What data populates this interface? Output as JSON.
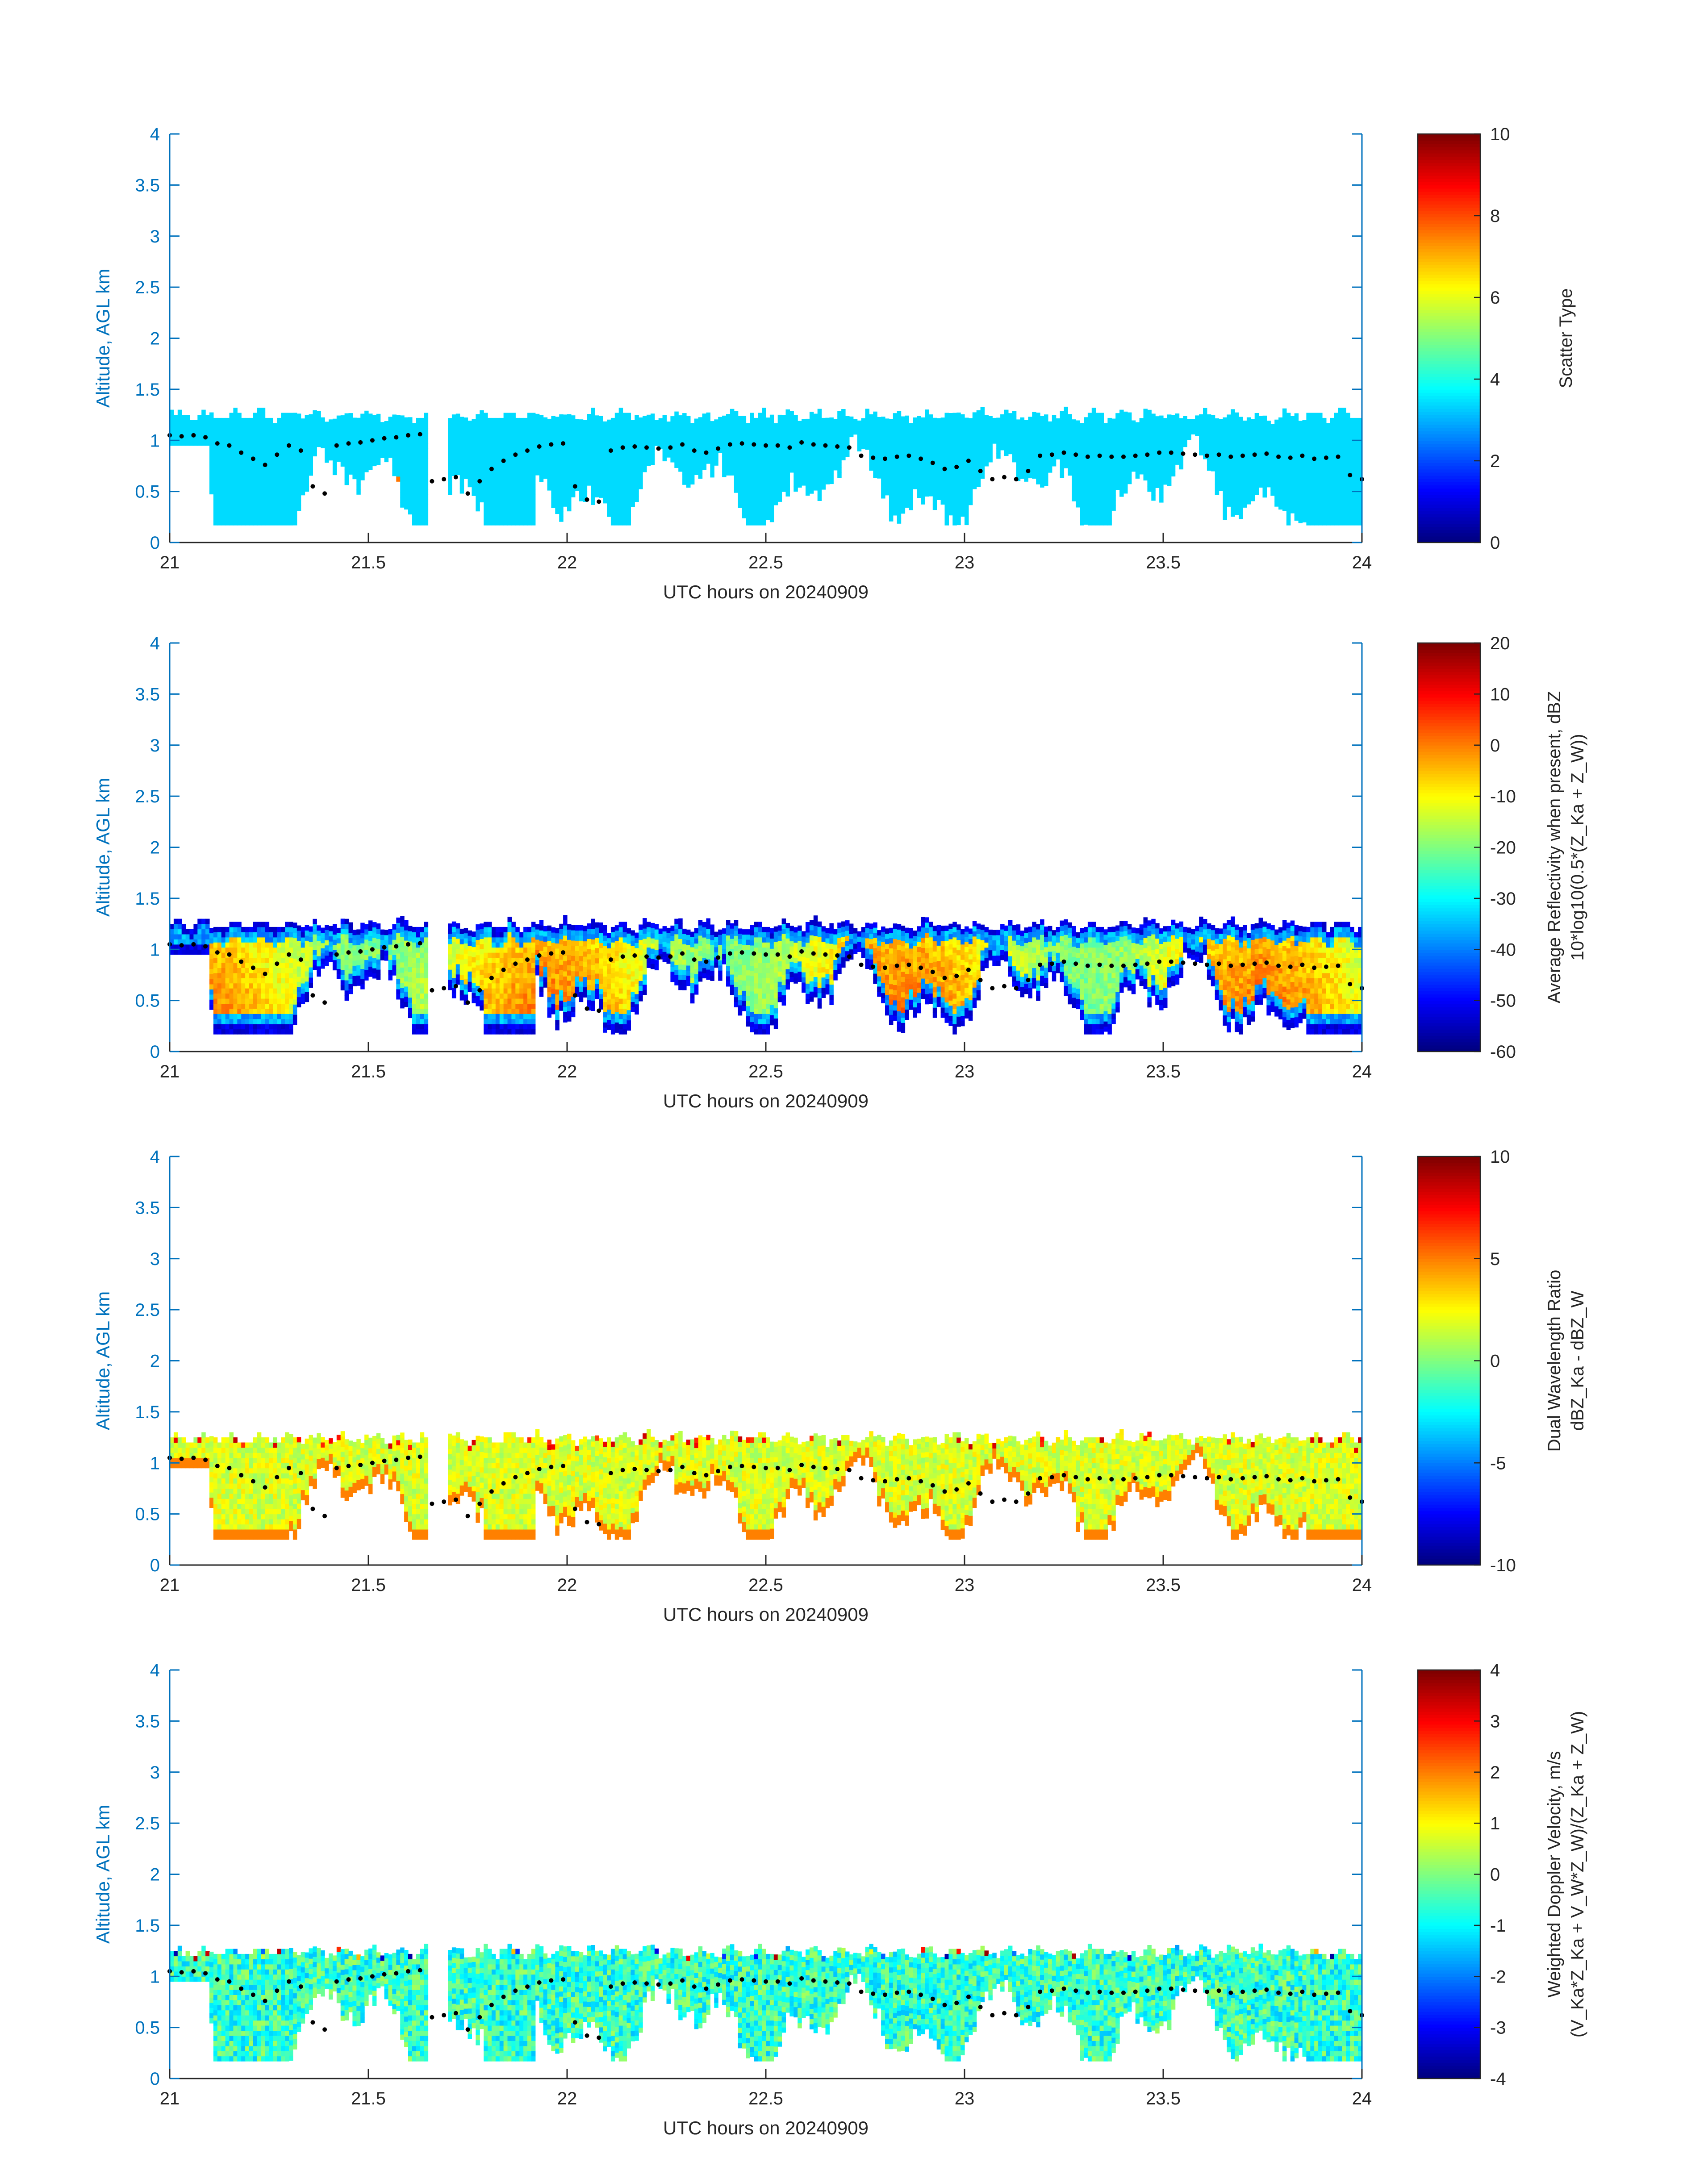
{
  "chart_data": [
    {
      "type": "heatmap",
      "title": "",
      "xlabel": "UTC hours on 20240909",
      "ylabel": "Altitude, AGL km",
      "xlim": [
        21,
        24
      ],
      "ylim": [
        0,
        4
      ],
      "xticks": [
        "21",
        "21.5",
        "22",
        "22.5",
        "23",
        "23.5",
        "24"
      ],
      "yticks": [
        "0",
        "0.5",
        "1",
        "1.5",
        "2",
        "2.5",
        "3",
        "3.5",
        "4"
      ],
      "colorbar": {
        "label_lines": [
          "Scatter Type"
        ],
        "range": [
          0,
          10
        ],
        "ticks": [
          "0",
          "2",
          "4",
          "6",
          "8",
          "10"
        ],
        "colormap": "jet"
      },
      "field": "scatter",
      "typical_value": 3.4,
      "echo_base_km": 0.17,
      "echo_top_km": 1.3
    },
    {
      "type": "heatmap",
      "title": "",
      "xlabel": "UTC hours on 20240909",
      "ylabel": "Altitude, AGL km",
      "xlim": [
        21,
        24
      ],
      "ylim": [
        0,
        4
      ],
      "xticks": [
        "21",
        "21.5",
        "22",
        "22.5",
        "23",
        "23.5",
        "24"
      ],
      "yticks": [
        "0",
        "0.5",
        "1",
        "1.5",
        "2",
        "2.5",
        "3",
        "3.5",
        "4"
      ],
      "colorbar": {
        "label_lines": [
          "Average Reflectivity when present, dBZ",
          "10*log10(0.5*(Z_Ka + Z_W))"
        ],
        "range": [
          -60,
          20
        ],
        "ticks": [
          "-60",
          "-50",
          "-40",
          "-30",
          "-20",
          "-10",
          "0",
          "10",
          "20"
        ],
        "colormap": "jet"
      },
      "field": "reflectivity",
      "core_value_range": [
        -20,
        2
      ],
      "edge_value": -55,
      "echo_base_km": 0.17,
      "echo_top_km": 1.3
    },
    {
      "type": "heatmap",
      "title": "",
      "xlabel": "UTC hours on 20240909",
      "ylabel": "Altitude, AGL km",
      "xlim": [
        21,
        24
      ],
      "ylim": [
        0,
        4
      ],
      "xticks": [
        "21",
        "21.5",
        "22",
        "22.5",
        "23",
        "23.5",
        "24"
      ],
      "yticks": [
        "0",
        "0.5",
        "1",
        "1.5",
        "2",
        "2.5",
        "3",
        "3.5",
        "4"
      ],
      "colorbar": {
        "label_lines": [
          "Dual Wavelength Ratio",
          "dBZ_Ka - dBZ_W"
        ],
        "range": [
          -10,
          10
        ],
        "ticks": [
          "-10",
          "-5",
          "0",
          "5",
          "10"
        ],
        "colormap": "jet"
      },
      "field": "dwr",
      "value_range": [
        0.5,
        3
      ],
      "echo_base_km": 0.25,
      "echo_top_km": 1.3
    },
    {
      "type": "heatmap",
      "title": "",
      "xlabel": "UTC hours on 20240909",
      "ylabel": "Altitude, AGL km",
      "xlim": [
        21,
        24
      ],
      "ylim": [
        0,
        4
      ],
      "xticks": [
        "21",
        "21.5",
        "22",
        "22.5",
        "23",
        "23.5",
        "24"
      ],
      "yticks": [
        "0",
        "0.5",
        "1",
        "1.5",
        "2",
        "2.5",
        "3",
        "3.5",
        "4"
      ],
      "colorbar": {
        "label_lines": [
          "Weighted Doppler Velocity, m/s",
          "(V_Ka*Z_Ka + V_W*Z_W)/(Z_Ka + Z_W)"
        ],
        "range": [
          -4,
          4
        ],
        "ticks": [
          "-4",
          "-3",
          "-2",
          "-1",
          "0",
          "1",
          "2",
          "3",
          "4"
        ],
        "colormap": "jet"
      },
      "field": "velocity",
      "value_range": [
        -1.5,
        0.3
      ],
      "echo_base_km": 0.17,
      "echo_top_km": 1.3
    }
  ],
  "cloud_base_markers": {
    "description_units": "x: UTC hours, y: km",
    "points": [
      [
        21.0,
        1.05
      ],
      [
        21.03,
        1.04
      ],
      [
        21.06,
        1.05
      ],
      [
        21.09,
        1.03
      ],
      [
        21.12,
        0.97
      ],
      [
        21.15,
        0.95
      ],
      [
        21.18,
        0.88
      ],
      [
        21.21,
        0.82
      ],
      [
        21.24,
        0.76
      ],
      [
        21.27,
        0.86
      ],
      [
        21.3,
        0.95
      ],
      [
        21.33,
        0.9
      ],
      [
        21.36,
        0.55
      ],
      [
        21.39,
        0.48
      ],
      [
        21.42,
        0.95
      ],
      [
        21.45,
        0.97
      ],
      [
        21.48,
        0.98
      ],
      [
        21.51,
        1.0
      ],
      [
        21.54,
        1.02
      ],
      [
        21.57,
        1.03
      ],
      [
        21.6,
        1.05
      ],
      [
        21.63,
        1.06
      ],
      [
        21.66,
        0.6
      ],
      [
        21.69,
        0.62
      ],
      [
        21.72,
        0.64
      ],
      [
        21.75,
        0.48
      ],
      [
        21.78,
        0.6
      ],
      [
        21.81,
        0.72
      ],
      [
        21.84,
        0.8
      ],
      [
        21.87,
        0.86
      ],
      [
        21.9,
        0.9
      ],
      [
        21.93,
        0.94
      ],
      [
        21.96,
        0.96
      ],
      [
        21.99,
        0.97
      ],
      [
        22.02,
        0.55
      ],
      [
        22.05,
        0.42
      ],
      [
        22.08,
        0.4
      ],
      [
        22.11,
        0.9
      ],
      [
        22.14,
        0.93
      ],
      [
        22.17,
        0.94
      ],
      [
        22.2,
        0.93
      ],
      [
        22.23,
        0.92
      ],
      [
        22.26,
        0.93
      ],
      [
        22.29,
        0.96
      ],
      [
        22.32,
        0.9
      ],
      [
        22.35,
        0.88
      ],
      [
        22.38,
        0.92
      ],
      [
        22.41,
        0.96
      ],
      [
        22.44,
        0.97
      ],
      [
        22.47,
        0.96
      ],
      [
        22.5,
        0.95
      ],
      [
        22.53,
        0.95
      ],
      [
        22.56,
        0.93
      ],
      [
        22.59,
        0.98
      ],
      [
        22.62,
        0.96
      ],
      [
        22.65,
        0.95
      ],
      [
        22.68,
        0.94
      ],
      [
        22.71,
        0.93
      ],
      [
        22.74,
        0.85
      ],
      [
        22.77,
        0.83
      ],
      [
        22.8,
        0.82
      ],
      [
        22.83,
        0.84
      ],
      [
        22.86,
        0.85
      ],
      [
        22.89,
        0.82
      ],
      [
        22.92,
        0.78
      ],
      [
        22.95,
        0.72
      ],
      [
        22.98,
        0.74
      ],
      [
        23.01,
        0.8
      ],
      [
        23.04,
        0.7
      ],
      [
        23.07,
        0.62
      ],
      [
        23.1,
        0.64
      ],
      [
        23.13,
        0.62
      ],
      [
        23.16,
        0.7
      ],
      [
        23.19,
        0.85
      ],
      [
        23.22,
        0.86
      ],
      [
        23.25,
        0.88
      ],
      [
        23.28,
        0.86
      ],
      [
        23.31,
        0.84
      ],
      [
        23.34,
        0.85
      ],
      [
        23.37,
        0.84
      ],
      [
        23.4,
        0.84
      ],
      [
        23.43,
        0.85
      ],
      [
        23.46,
        0.86
      ],
      [
        23.49,
        0.88
      ],
      [
        23.52,
        0.88
      ],
      [
        23.55,
        0.87
      ],
      [
        23.58,
        0.86
      ],
      [
        23.61,
        0.85
      ],
      [
        23.64,
        0.86
      ],
      [
        23.67,
        0.84
      ],
      [
        23.7,
        0.85
      ],
      [
        23.73,
        0.86
      ],
      [
        23.76,
        0.87
      ],
      [
        23.79,
        0.84
      ],
      [
        23.82,
        0.83
      ],
      [
        23.85,
        0.85
      ],
      [
        23.88,
        0.82
      ],
      [
        23.91,
        0.83
      ],
      [
        23.94,
        0.84
      ],
      [
        23.97,
        0.66
      ],
      [
        24.0,
        0.62
      ]
    ]
  },
  "colors": {
    "axis": "#0072bd",
    "text": "#262626",
    "marker": "#000000"
  }
}
